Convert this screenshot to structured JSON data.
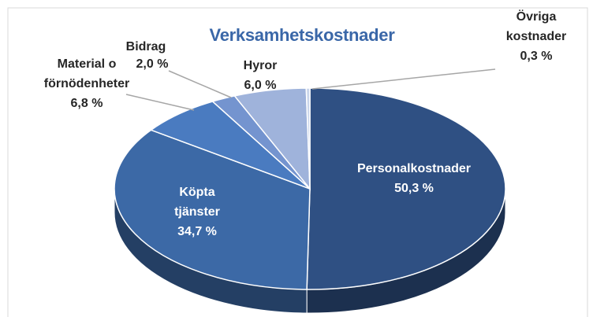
{
  "chart_data": {
    "type": "pie3d",
    "title": "Verksamhetskostnader",
    "categories": [
      "Personalkostnader",
      "Köpta tjänster",
      "Material o förnödenheter",
      "Bidrag",
      "Hyror",
      "Övriga kostnader"
    ],
    "values": [
      50.3,
      34.7,
      6.8,
      2.0,
      6.0,
      0.3
    ],
    "value_labels": [
      "50,3 %",
      "34,7 %",
      "6,8 %",
      "2,0 %",
      "6,0 %",
      "0,3 %"
    ],
    "colors": [
      "#2f5083",
      "#3c69a6",
      "#4a7bc0",
      "#7494cf",
      "#9fb3db",
      "#c9d5ea"
    ]
  }
}
